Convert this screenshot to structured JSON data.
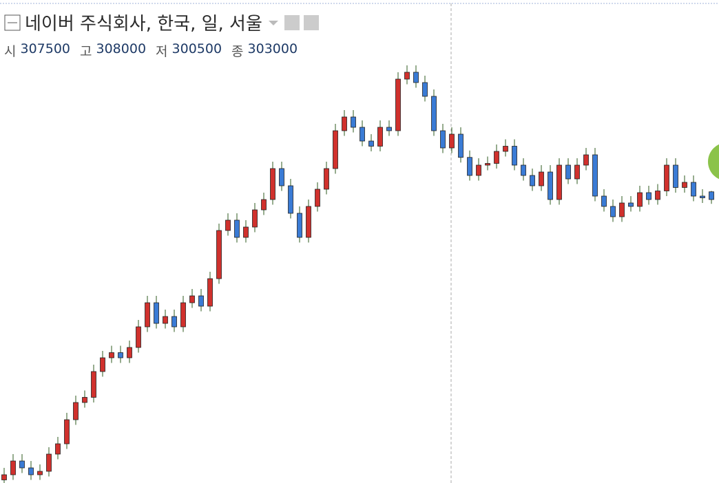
{
  "chart_data": {
    "type": "candlestick",
    "title": "네이버 주식회사, 한국, 일, 서울",
    "ohlc_labels": [
      "시",
      "고",
      "저",
      "종"
    ],
    "open": [
      140000,
      143000,
      151000,
      147000,
      143000,
      145000,
      155000,
      161000,
      175000,
      185000,
      188000,
      203000,
      211000,
      214000,
      211000,
      217000,
      229000,
      243000,
      231000,
      235000,
      229000,
      243000,
      247000,
      241000,
      257000,
      285000,
      291000,
      281000,
      287000,
      297000,
      303000,
      321000,
      311000,
      295000,
      281000,
      299000,
      309000,
      321000,
      343000,
      351000,
      345000,
      337000,
      334000,
      345000,
      343000,
      373000,
      377000,
      371000,
      363000,
      343000,
      333000,
      341000,
      327500,
      317000,
      323000,
      324000,
      331000,
      334000,
      323000,
      317000,
      311000,
      319000,
      303000,
      323000,
      315000,
      323000,
      329000,
      305000,
      299000,
      293000,
      301000,
      299000,
      307000,
      303000,
      308000,
      323000,
      310000,
      313000,
      305000,
      307500
    ],
    "high": [
      147000,
      155000,
      155000,
      151000,
      149000,
      159000,
      165000,
      179000,
      189000,
      192000,
      207000,
      215000,
      218000,
      218000,
      221000,
      233000,
      247000,
      247000,
      239000,
      239000,
      247000,
      251000,
      251000,
      261000,
      289000,
      295000,
      295000,
      291000,
      301000,
      307000,
      325000,
      325000,
      315000,
      299000,
      303000,
      313000,
      325000,
      347000,
      355000,
      355000,
      349000,
      341000,
      349000,
      349000,
      377000,
      381000,
      381000,
      375000,
      367000,
      347000,
      345000,
      345000,
      331500,
      327000,
      328000,
      335000,
      338000,
      338000,
      327000,
      321000,
      323000,
      323000,
      327000,
      327000,
      327000,
      333000,
      333000,
      309000,
      303000,
      305000,
      305000,
      311000,
      311000,
      312000,
      327000,
      327000,
      317000,
      317000,
      309000,
      308000
    ],
    "low": [
      137000,
      140000,
      144000,
      140000,
      140000,
      142000,
      152000,
      158000,
      172000,
      182000,
      185000,
      200000,
      208000,
      208000,
      208000,
      214000,
      226000,
      228000,
      228000,
      226000,
      226000,
      240000,
      238000,
      238000,
      254000,
      282000,
      278000,
      278000,
      284000,
      294000,
      300000,
      308000,
      292000,
      278000,
      278000,
      296000,
      306000,
      318000,
      340000,
      342000,
      334000,
      331000,
      331000,
      340000,
      340000,
      370000,
      368000,
      360000,
      340000,
      330000,
      330000,
      324500,
      314000,
      314000,
      320000,
      321000,
      328000,
      320000,
      314000,
      308000,
      308000,
      300000,
      300000,
      312000,
      312000,
      320000,
      302000,
      296000,
      290000,
      290000,
      296000,
      296000,
      300000,
      300000,
      305000,
      307000,
      307000,
      302000,
      301000,
      300500
    ],
    "close": [
      143000,
      151000,
      147000,
      143000,
      145000,
      155000,
      161000,
      175000,
      185000,
      188000,
      203000,
      211000,
      214000,
      211000,
      217000,
      229000,
      243000,
      231000,
      235000,
      229000,
      243000,
      247000,
      241000,
      257000,
      285000,
      291000,
      281000,
      287000,
      297000,
      303000,
      321000,
      311000,
      295000,
      281000,
      299000,
      309000,
      321000,
      343000,
      351000,
      345000,
      337000,
      334000,
      345000,
      343000,
      373000,
      377000,
      371000,
      363000,
      343000,
      333000,
      341000,
      327500,
      317000,
      323000,
      324000,
      331000,
      334000,
      323000,
      317000,
      311000,
      319000,
      303000,
      323000,
      315000,
      323000,
      329000,
      305000,
      299000,
      293000,
      301000,
      299000,
      307000,
      303000,
      308000,
      323000,
      310000,
      313000,
      305000,
      304000,
      303000
    ],
    "up_color": "#d0312d",
    "down_color": "#3a7bd5",
    "wick_color": "#2d5a1e",
    "ylim": [
      130000,
      419000
    ]
  }
}
